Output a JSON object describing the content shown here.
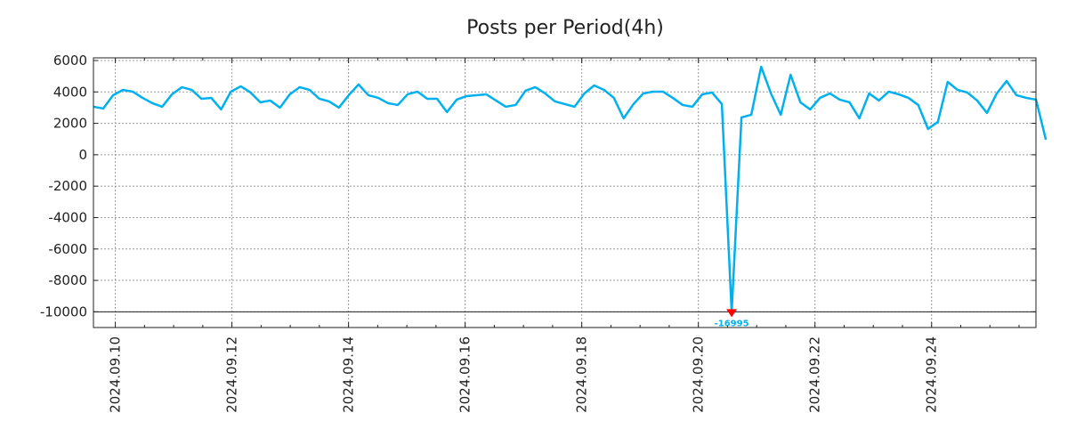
{
  "chart_data": {
    "type": "line",
    "title": "Posts per Period(4h)",
    "xlabel": "",
    "ylabel": "",
    "x_unit": "days since 2024.09.09 00:00",
    "xlim": [
      0.625,
      16.79
    ],
    "ylim": [
      -11000,
      6170
    ],
    "grid": true,
    "y_ticks": [
      6000,
      4000,
      2000,
      0,
      -2000,
      -4000,
      -6000,
      -8000,
      -10000
    ],
    "x_ticks": [
      {
        "value": 1,
        "label": "2024.09.10"
      },
      {
        "value": 3,
        "label": "2024.09.12"
      },
      {
        "value": 5,
        "label": "2024.09.14"
      },
      {
        "value": 7,
        "label": "2024.09.16"
      },
      {
        "value": 9,
        "label": "2024.09.18"
      },
      {
        "value": 11,
        "label": "2024.09.20"
      },
      {
        "value": 13,
        "label": "2024.09.22"
      },
      {
        "value": 15,
        "label": "2024.09.24"
      }
    ],
    "reference_line": -10000,
    "series": [
      {
        "name": "posts",
        "color": "#00b0f0",
        "x_start": 0.625,
        "x_step": 0.1684,
        "values": [
          3057,
          2943,
          3792,
          4132,
          4019,
          3623,
          3283,
          3057,
          3849,
          4302,
          4132,
          3566,
          3623,
          2887,
          4019,
          4358,
          3962,
          3339,
          3453,
          3000,
          3849,
          4302,
          4132,
          3566,
          3396,
          3000,
          3792,
          4472,
          3792,
          3623,
          3283,
          3170,
          3849,
          4019,
          3566,
          3566,
          2717,
          3509,
          3736,
          3792,
          3849,
          3453,
          3057,
          3170,
          4075,
          4302,
          3905,
          3396,
          3226,
          3057,
          3905,
          4415,
          4132,
          3623,
          2321,
          3226,
          3905,
          4019,
          4019,
          3623,
          3170,
          3057,
          3849,
          3962,
          3226,
          -16995,
          2377,
          2547,
          5604,
          3905,
          2547,
          5094,
          3339,
          2887,
          3623,
          3905,
          3509,
          3339,
          2321,
          3905,
          3453,
          4019,
          3849,
          3623,
          3170,
          1641,
          2094,
          4641,
          4132,
          3962,
          3453,
          2660,
          3905,
          4698,
          3792,
          3623,
          3509,
          962
        ]
      }
    ],
    "annotations": [
      {
        "label": "-16995",
        "marker": "red-down-triangle",
        "color": "#ff0000",
        "label_color": "#00b0f0"
      }
    ]
  }
}
